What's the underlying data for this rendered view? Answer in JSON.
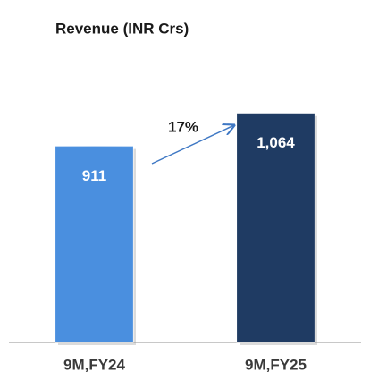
{
  "chart_data": {
    "type": "bar",
    "title": "Revenue (INR Crs)",
    "categories": [
      "9M,FY24",
      "9M,FY25"
    ],
    "values": [
      911,
      1064
    ],
    "value_labels": [
      "911",
      "1,064"
    ],
    "colors": [
      "#4a8fdf",
      "#1f3b63"
    ],
    "annotation": "17%",
    "ylim": [
      0,
      1200
    ]
  }
}
